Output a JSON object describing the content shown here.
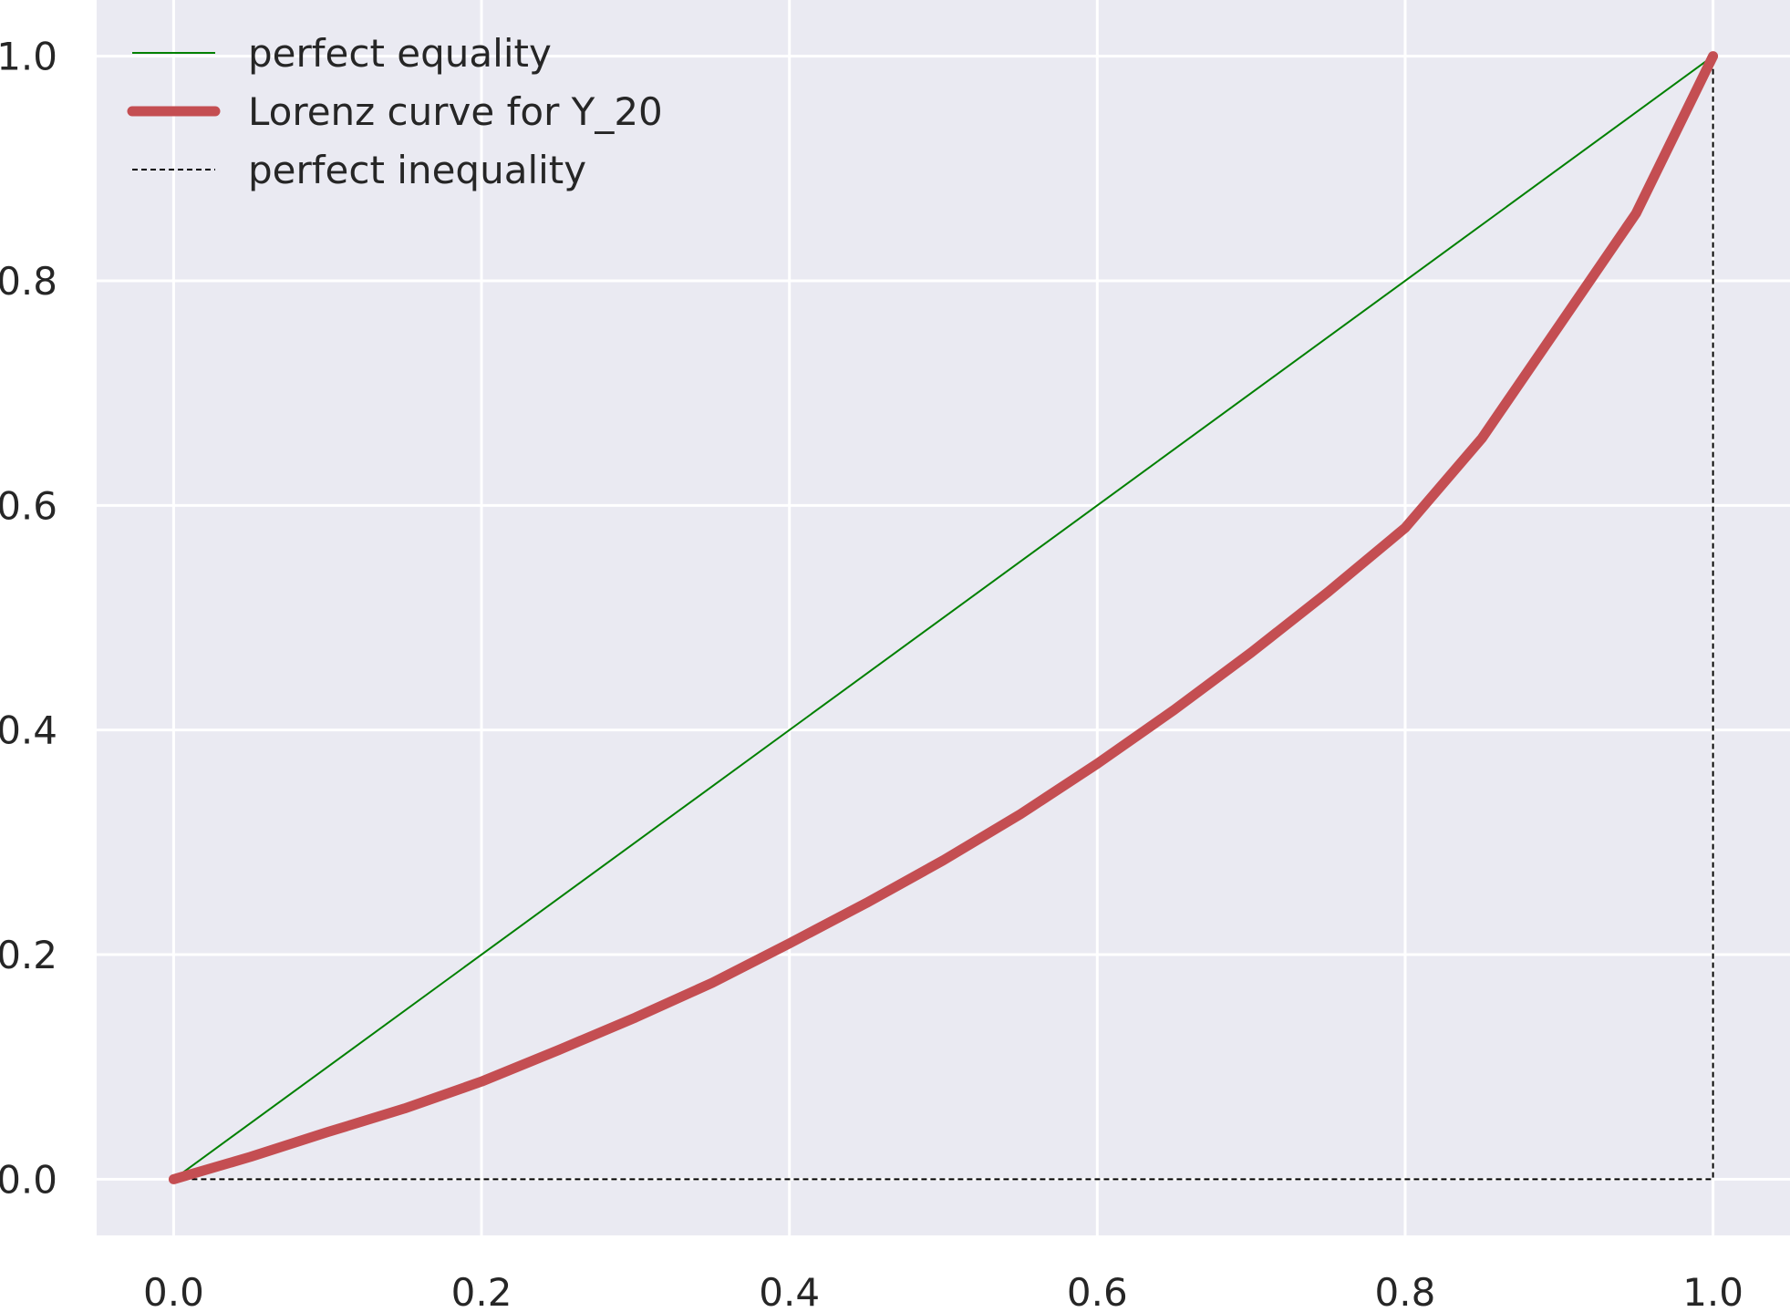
{
  "chart_data": {
    "type": "line",
    "title": "",
    "xlabel": "",
    "ylabel": "",
    "xlim": [
      -0.05,
      1.05
    ],
    "ylim": [
      -0.05,
      1.05
    ],
    "grid": true,
    "legend_position": "top-left",
    "x_ticks": [
      0.0,
      0.2,
      0.4,
      0.6,
      0.8,
      1.0
    ],
    "y_ticks": [
      0.0,
      0.2,
      0.4,
      0.6,
      0.8,
      1.0
    ],
    "x_tick_labels": [
      "0.0",
      "0.2",
      "0.4",
      "0.6",
      "0.8",
      "1.0"
    ],
    "y_tick_labels": [
      "0.0",
      "0.2",
      "0.4",
      "0.6",
      "0.8",
      "1.0"
    ],
    "colors": {
      "background": "#eaeaf2",
      "grid": "#ffffff",
      "equality": "#008000",
      "lorenz": "#c44e52",
      "inequality": "#000000"
    },
    "series": [
      {
        "name": "perfect equality",
        "style": "solid-thin",
        "x": [
          0.0,
          1.0
        ],
        "y": [
          0.0,
          1.0
        ]
      },
      {
        "name": "Lorenz curve for Y_20",
        "style": "solid-thick",
        "x": [
          0.0,
          0.05,
          0.1,
          0.15,
          0.2,
          0.25,
          0.3,
          0.35,
          0.4,
          0.45,
          0.5,
          0.55,
          0.6,
          0.65,
          0.7,
          0.75,
          0.8,
          0.85,
          0.9,
          0.95,
          1.0
        ],
        "y": [
          0.0,
          0.02,
          0.042,
          0.063,
          0.087,
          0.115,
          0.144,
          0.175,
          0.21,
          0.246,
          0.284,
          0.325,
          0.37,
          0.418,
          0.469,
          0.523,
          0.58,
          0.66,
          0.76,
          0.86,
          1.0
        ]
      },
      {
        "name": "perfect inequality",
        "style": "dashed",
        "x": [
          0.0,
          1.0,
          1.0
        ],
        "y": [
          0.0,
          0.0,
          1.0
        ]
      }
    ]
  }
}
